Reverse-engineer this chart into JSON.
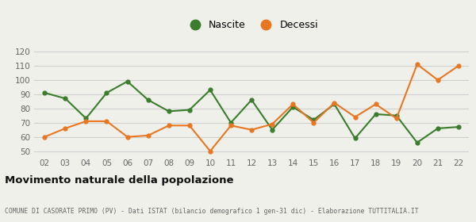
{
  "years": [
    "02",
    "03",
    "04",
    "05",
    "06",
    "07",
    "08",
    "09",
    "10",
    "11",
    "12",
    "13",
    "14",
    "15",
    "16",
    "17",
    "18",
    "19",
    "20",
    "21",
    "22"
  ],
  "nascite": [
    91,
    87,
    73,
    91,
    99,
    86,
    78,
    79,
    93,
    70,
    86,
    65,
    81,
    72,
    83,
    59,
    76,
    75,
    56,
    66,
    67
  ],
  "decessi": [
    60,
    66,
    71,
    71,
    60,
    61,
    68,
    68,
    50,
    68,
    65,
    69,
    83,
    70,
    84,
    74,
    83,
    73,
    111,
    100,
    110
  ],
  "nascite_color": "#3a7d2c",
  "decessi_color": "#e87722",
  "background_color": "#f0f0eb",
  "grid_color": "#d0d0d0",
  "title": "Movimento naturale della popolazione",
  "subtitle": "COMUNE DI CASORATE PRIMO (PV) - Dati ISTAT (bilancio demografico 1 gen-31 dic) - Elaborazione TUTTITALIA.IT",
  "ylim": [
    47,
    125
  ],
  "yticks": [
    50,
    60,
    70,
    80,
    90,
    100,
    110,
    120
  ],
  "legend_nascite": "Nascite",
  "legend_decessi": "Decessi"
}
